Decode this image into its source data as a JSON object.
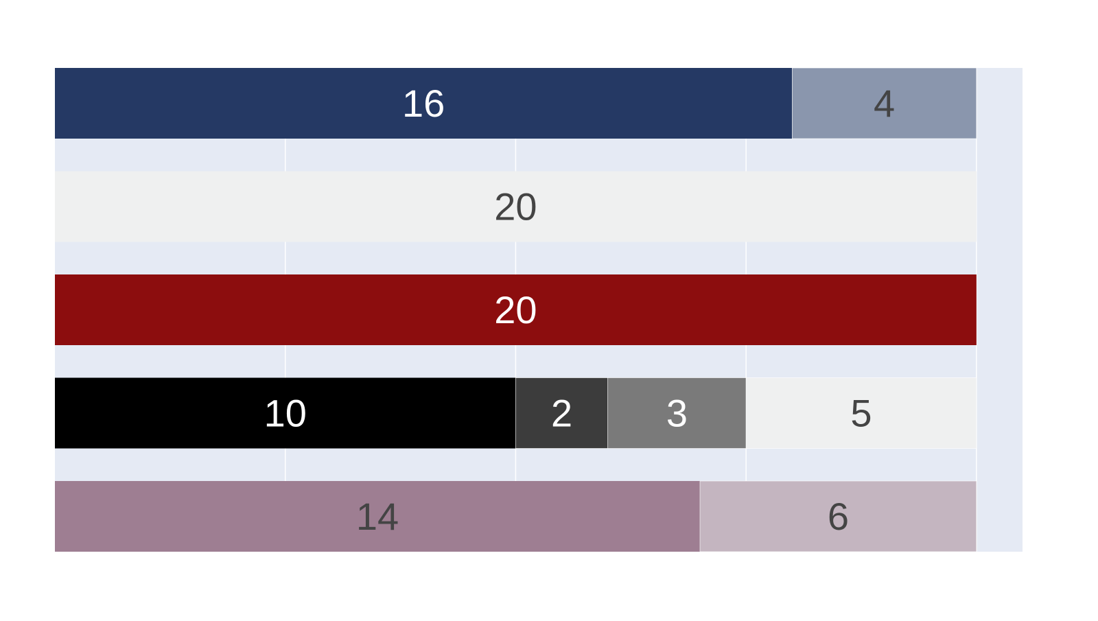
{
  "chart_data": {
    "type": "bar",
    "orientation": "horizontal",
    "stacked": true,
    "title": "",
    "xlabel": "",
    "ylabel": "",
    "xlim": [
      0,
      21
    ],
    "grid": true,
    "legend": "none",
    "plot_background": "#E5EAF4",
    "grid_color": "#FFFFFF",
    "rows": [
      {
        "segments": [
          {
            "value": 16,
            "color": "#253964",
            "label_color": "#FFFFFF"
          },
          {
            "value": 4,
            "color": "#8A96AD",
            "label_color": "#444444"
          }
        ]
      },
      {
        "segments": [
          {
            "value": 20,
            "color": "#EFF0F0",
            "label_color": "#444444"
          }
        ]
      },
      {
        "segments": [
          {
            "value": 20,
            "color": "#8C0D0E",
            "label_color": "#FFFFFF"
          }
        ]
      },
      {
        "segments": [
          {
            "value": 10,
            "color": "#000000",
            "label_color": "#FFFFFF"
          },
          {
            "value": 2,
            "color": "#3C3C3C",
            "label_color": "#FFFFFF"
          },
          {
            "value": 3,
            "color": "#7A7A7A",
            "label_color": "#FFFFFF"
          },
          {
            "value": 5,
            "color": "#EFF0F0",
            "label_color": "#444444"
          }
        ]
      },
      {
        "segments": [
          {
            "value": 14,
            "color": "#9E7E92",
            "label_color": "#444444"
          },
          {
            "value": 6,
            "color": "#C4B5C0",
            "label_color": "#444444"
          }
        ]
      }
    ]
  }
}
